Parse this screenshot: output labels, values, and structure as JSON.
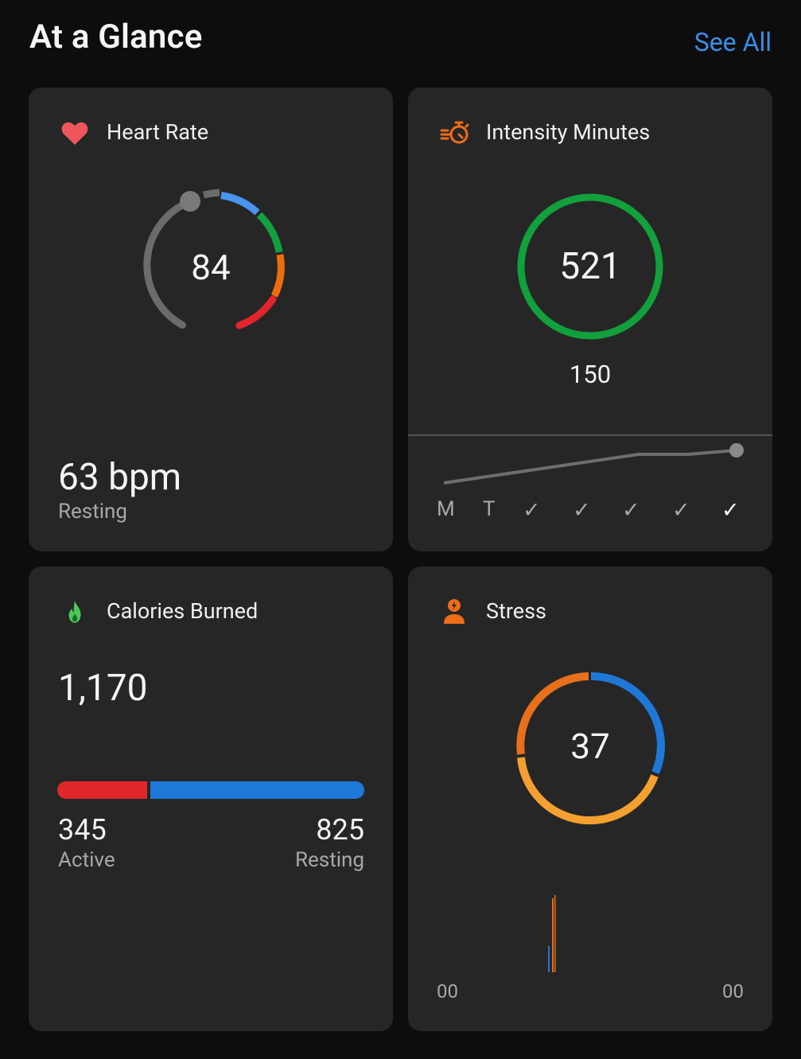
{
  "header": {
    "title": "At a Glance",
    "see_all": "See All"
  },
  "heart_rate": {
    "title": "Heart Rate",
    "current": "84",
    "resting_value": "63 bpm",
    "resting_label": "Resting",
    "icon": "heart-icon"
  },
  "intensity": {
    "title": "Intensity Minutes",
    "value": "521",
    "goal": "150",
    "icon": "stopwatch-icon",
    "days": [
      "M",
      "T",
      "✓",
      "✓",
      "✓",
      "✓",
      "✓"
    ]
  },
  "calories": {
    "title": "Calories Burned",
    "total": "1,170",
    "active_value": "345",
    "active_label": "Active",
    "resting_value": "825",
    "resting_label": "Resting",
    "icon": "flame-icon"
  },
  "stress": {
    "title": "Stress",
    "value": "37",
    "start_label": "00",
    "end_label": "00",
    "icon": "stress-person-icon"
  },
  "colors": {
    "background": "#0d0d0d",
    "card": "#262626",
    "link": "#3a8fe8",
    "heart": "#f0555e",
    "intensity_ring": "#11a03c",
    "active_bar": "#e0262b",
    "resting_bar": "#1e78d8",
    "stress_high": "#e8701a",
    "stress_med": "#f4a030",
    "stress_rest": "#1e78d8"
  }
}
